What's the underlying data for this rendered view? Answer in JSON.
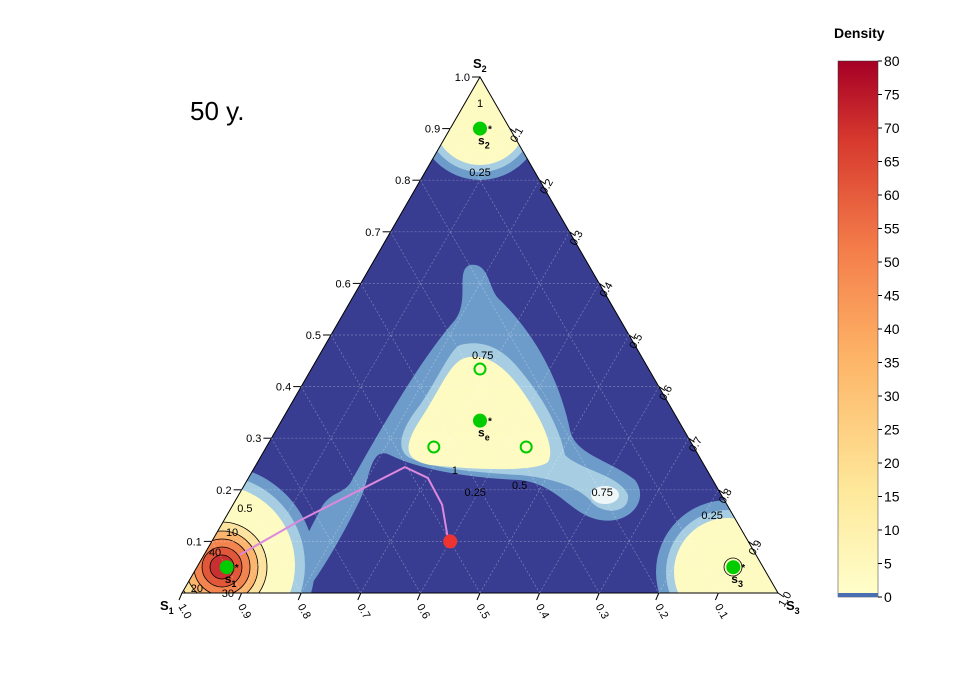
{
  "chart_data": {
    "type": "ternary",
    "title": "50 y.",
    "vertices": [
      {
        "name": "S",
        "sub": "1"
      },
      {
        "name": "S",
        "sub": "2"
      },
      {
        "name": "S",
        "sub": "3"
      }
    ],
    "s1ticks": [
      {
        "value": 1,
        "label": "1.0"
      },
      0.9,
      0.8,
      0.7,
      0.6,
      0.5,
      0.4,
      0.3,
      0.2,
      0.1
    ],
    "s2ticks": [
      0.1,
      0.2,
      0.3,
      0.4,
      0.5,
      0.6,
      0.7,
      0.8,
      0.9,
      {
        "value": 1,
        "label": "1.0"
      }
    ],
    "s3ticks": [
      0.1,
      0.2,
      0.3,
      0.4,
      0.5,
      0.6,
      0.7,
      0.8,
      0.9,
      {
        "value": 1,
        "label": "1.0"
      }
    ],
    "grid": true,
    "points": [
      {
        "name": "s",
        "sub": "1",
        "sup": "*",
        "coords": [
          0.9,
          0.05,
          0.05
        ],
        "color": "#00cc00",
        "filled": true
      },
      {
        "name": "s",
        "sub": "2",
        "sup": "*",
        "coords": [
          0.05,
          0.9,
          0.05
        ],
        "color": "#00cc00",
        "filled": true
      },
      {
        "name": "s",
        "sub": "3",
        "sup": "*",
        "coords": [
          0.05,
          0.05,
          0.9
        ],
        "color": "#00cc00",
        "filled": true
      },
      {
        "name": "s",
        "sub": "e",
        "sup": "*",
        "coords": [
          0.333,
          0.334,
          0.333
        ],
        "color": "#00cc00",
        "filled": true
      },
      {
        "coords": [
          0.283,
          0.434,
          0.283
        ],
        "color": "#00cc00",
        "filled": false
      },
      {
        "coords": [
          0.436,
          0.283,
          0.281
        ],
        "color": "#00cc00",
        "filled": false
      },
      {
        "coords": [
          0.281,
          0.283,
          0.436
        ],
        "color": "#00cc00",
        "filled": false
      },
      {
        "coords": [
          0.5,
          0.1,
          0.4
        ],
        "color": "#ee3333",
        "filled": true
      }
    ],
    "path": {
      "color": "#dd88dd",
      "coords": [
        [
          0.866,
          0.074,
          0.06
        ],
        [
          0.731,
          0.141,
          0.128
        ],
        [
          0.601,
          0.2,
          0.199
        ],
        [
          0.504,
          0.244,
          0.252
        ],
        [
          0.476,
          0.223,
          0.301
        ],
        [
          0.478,
          0.171,
          0.351
        ],
        [
          0.502,
          0.103,
          0.395
        ]
      ]
    },
    "contours": [
      {
        "value": 1,
        "at": [
          0.025,
          0.95,
          0.025
        ]
      },
      {
        "value": 0.25,
        "at": [
          0.092,
          0.816,
          0.092
        ]
      },
      {
        "value": 0.75,
        "at": [
          0.265,
          0.461,
          0.274
        ]
      },
      {
        "value": 1,
        "at": [
          0.423,
          0.238,
          0.339
        ]
      },
      {
        "value": 0.5,
        "at": [
          0.329,
          0.209,
          0.462
        ]
      },
      {
        "value": 0.25,
        "at": [
          0.41,
          0.196,
          0.394
        ]
      },
      {
        "value": 0.75,
        "at": [
          0.197,
          0.196,
          0.607
        ]
      },
      {
        "value": 0.25,
        "at": [
          0.035,
          0.151,
          0.814
        ]
      },
      {
        "value": 10,
        "at": [
          0.857,
          0.118,
          0.025
        ]
      },
      {
        "value": 20,
        "at": [
          0.97,
          0.01,
          0.02
        ]
      },
      {
        "value": 30,
        "at": [
          0.923,
          0.0,
          0.077
        ]
      },
      {
        "value": 40,
        "at": [
          0.905,
          0.079,
          0.016
        ]
      },
      {
        "value": 0.5,
        "at": [
          0.812,
          0.165,
          0.023
        ]
      }
    ],
    "colorbar": {
      "title": "Density",
      "lim": [
        0,
        80
      ],
      "ticks": [
        0,
        5,
        10,
        15,
        20,
        25,
        30,
        35,
        40,
        45,
        50,
        55,
        60,
        65,
        70,
        75,
        80
      ]
    }
  }
}
